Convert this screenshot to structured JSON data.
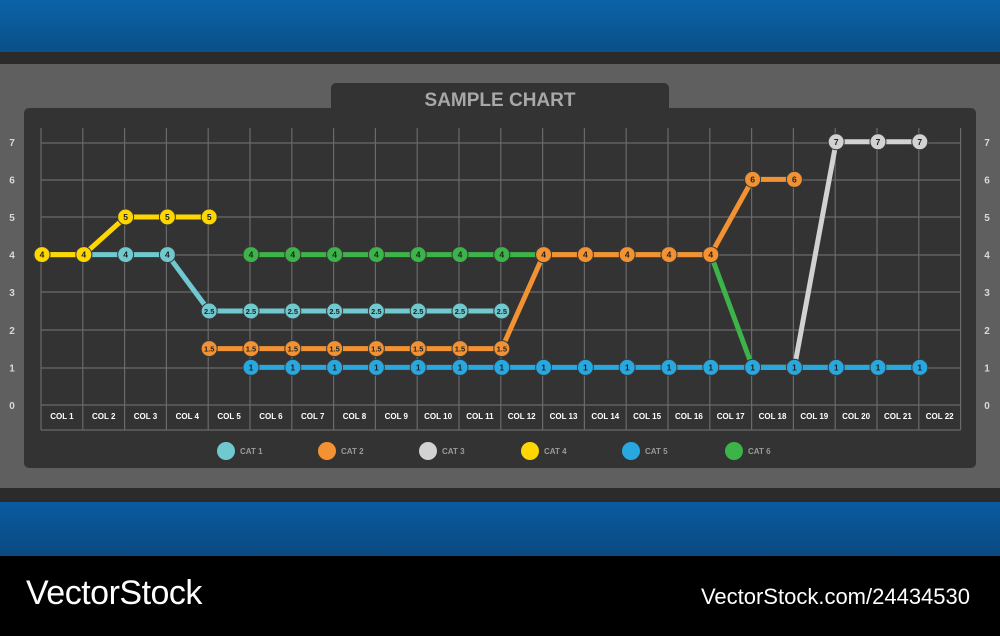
{
  "chart_data": {
    "type": "line",
    "title": "SAMPLE CHART",
    "categories": [
      "COL 1",
      "COL 2",
      "COL 3",
      "COL 4",
      "COL 5",
      "COL 6",
      "COL 7",
      "COL 8",
      "COL 9",
      "COL 10",
      "COL 11",
      "COL 12",
      "COL 13",
      "COL 14",
      "COL 15",
      "COL 16",
      "COL 17",
      "COL 18",
      "COL 19",
      "COL 20",
      "COL 21",
      "COL 22"
    ],
    "y_ticks": [
      "0",
      "1",
      "2",
      "3",
      "4",
      "5",
      "6",
      "7"
    ],
    "ylim": [
      0,
      7
    ],
    "grid": true,
    "legend_position": "bottom",
    "series": [
      {
        "name": "CAT 1",
        "color": "#6fc9cf",
        "values": [
          4,
          4,
          4,
          4,
          2.5,
          2.5,
          2.5,
          2.5,
          2.5,
          2.5,
          2.5,
          2.5,
          null,
          null,
          null,
          null,
          null,
          null,
          null,
          null,
          null,
          null
        ]
      },
      {
        "name": "CAT 2",
        "color": "#f39232",
        "values": [
          null,
          null,
          null,
          null,
          1.5,
          1.5,
          1.5,
          1.5,
          1.5,
          1.5,
          1.5,
          1.5,
          4,
          4,
          4,
          4,
          4,
          6,
          6,
          null,
          null,
          null
        ]
      },
      {
        "name": "CAT 3",
        "color": "#d2d2d2",
        "values": [
          null,
          null,
          null,
          null,
          null,
          null,
          null,
          null,
          null,
          null,
          null,
          null,
          null,
          null,
          null,
          null,
          null,
          1,
          1,
          7,
          7,
          7
        ]
      },
      {
        "name": "CAT 4",
        "color": "#ffd700",
        "values": [
          4,
          4,
          5,
          5,
          5,
          null,
          null,
          null,
          null,
          null,
          null,
          null,
          null,
          null,
          null,
          null,
          null,
          null,
          null,
          null,
          null,
          null
        ]
      },
      {
        "name": "CAT 5",
        "color": "#29a8e0",
        "values": [
          null,
          null,
          null,
          null,
          null,
          1,
          1,
          1,
          1,
          1,
          1,
          1,
          1,
          1,
          1,
          1,
          1,
          1,
          1,
          1,
          1,
          1
        ]
      },
      {
        "name": "CAT 6",
        "color": "#3cb449",
        "values": [
          null,
          null,
          null,
          null,
          null,
          4,
          4,
          4,
          4,
          4,
          4,
          4,
          4,
          4,
          4,
          4,
          4,
          1,
          1,
          1,
          1,
          1
        ]
      }
    ]
  },
  "watermark": {
    "left": "VectorStock",
    "right": "VectorStock.com/24434530"
  }
}
